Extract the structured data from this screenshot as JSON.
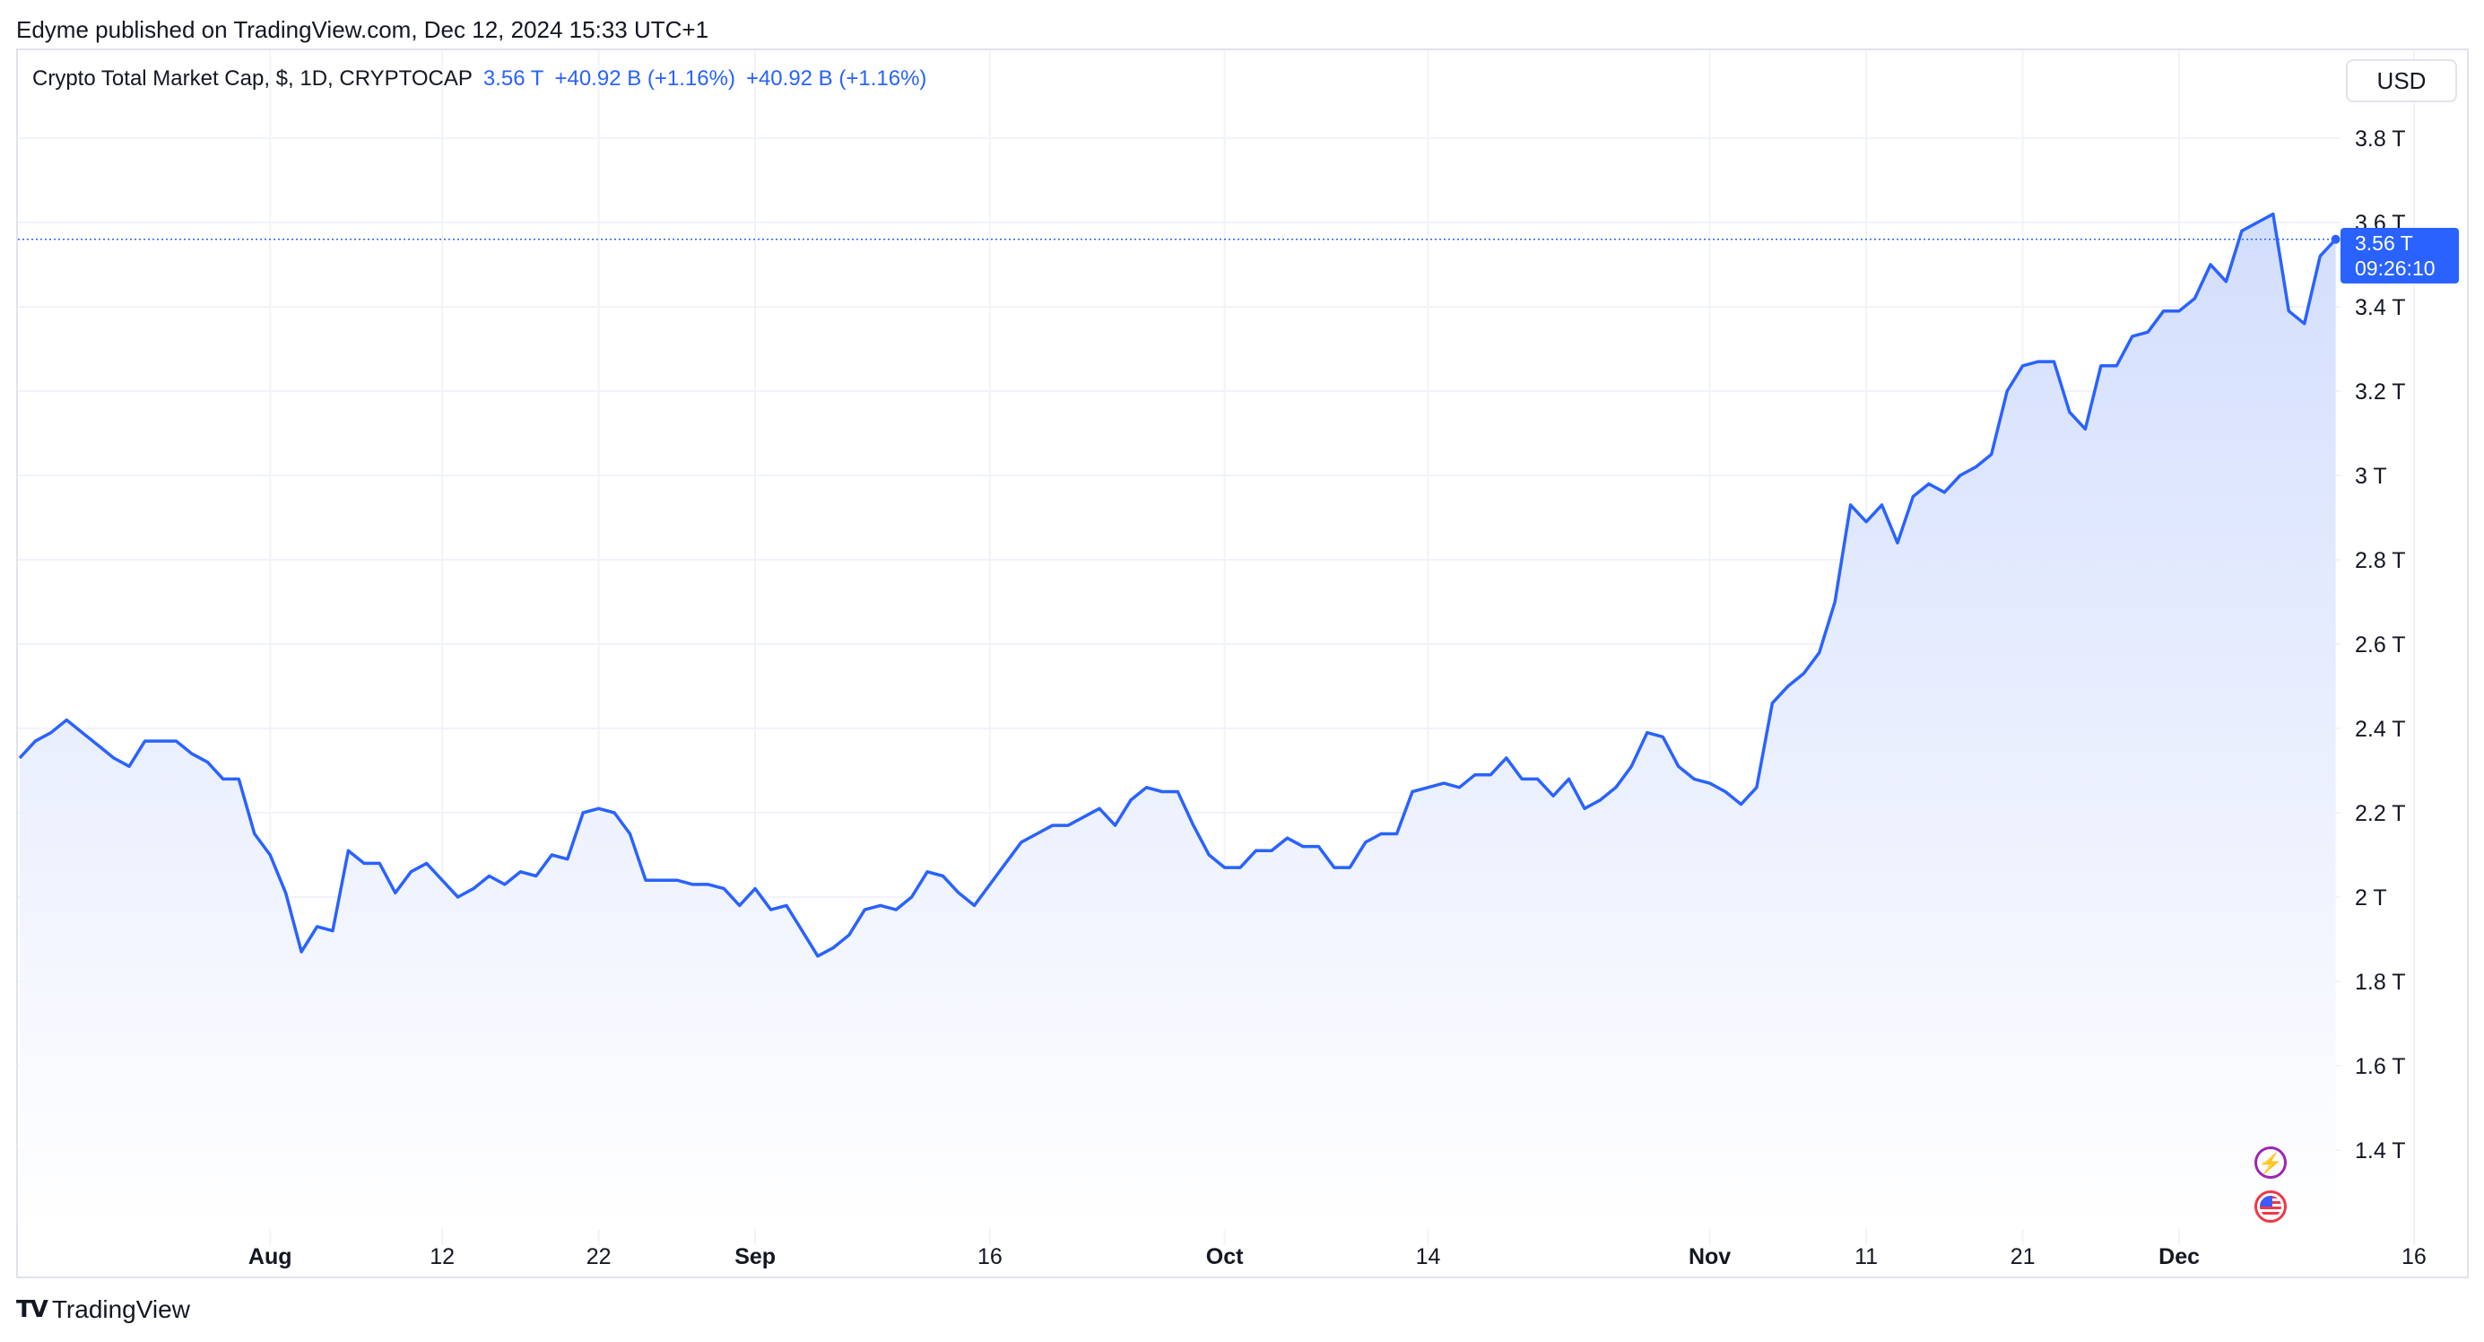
{
  "publisher": "Edyme published on TradingView.com, Dec 12, 2024 15:33 UTC+1",
  "legend": {
    "symbol": "Crypto Total Market Cap, $, 1D, CRYPTOCAP",
    "last": "3.56 T",
    "change1": "+40.92 B (+1.16%)",
    "change2": "+40.92 B (+1.16%)"
  },
  "currency_button": "USD",
  "price_tag": {
    "value": "3.56 T",
    "countdown": "09:26:10"
  },
  "footer_brand": "TradingView",
  "icons": [
    "tradingview-logo-icon",
    "bolt-icon",
    "us-flag-icon"
  ],
  "colors": {
    "line": "#2962ff",
    "area_top": "#d3defd",
    "area_bottom": "#ffffff",
    "grid": "#f0f3fa"
  },
  "chart_data": {
    "type": "area",
    "title": "Crypto Total Market Cap, $, 1D, CRYPTOCAP",
    "xlabel": "",
    "ylabel": "",
    "ylim": [
      1.2,
      3.9
    ],
    "y_ticks": [
      {
        "value": 1.4,
        "label": "1.4 T"
      },
      {
        "value": 1.6,
        "label": "1.6 T"
      },
      {
        "value": 1.8,
        "label": "1.8 T"
      },
      {
        "value": 2.0,
        "label": "2 T"
      },
      {
        "value": 2.2,
        "label": "2.2 T"
      },
      {
        "value": 2.4,
        "label": "2.4 T"
      },
      {
        "value": 2.6,
        "label": "2.6 T"
      },
      {
        "value": 2.8,
        "label": "2.8 T"
      },
      {
        "value": 3.0,
        "label": "3 T"
      },
      {
        "value": 3.2,
        "label": "3.2 T"
      },
      {
        "value": 3.4,
        "label": "3.4 T"
      },
      {
        "value": 3.6,
        "label": "3.6 T"
      },
      {
        "value": 3.8,
        "label": "3.8 T"
      }
    ],
    "x_ticks": [
      {
        "date": "2024-08-01",
        "label": "Aug",
        "bold": true
      },
      {
        "date": "2024-08-12",
        "label": "12",
        "bold": false
      },
      {
        "date": "2024-08-22",
        "label": "22",
        "bold": false
      },
      {
        "date": "2024-09-01",
        "label": "Sep",
        "bold": true
      },
      {
        "date": "2024-09-16",
        "label": "16",
        "bold": false
      },
      {
        "date": "2024-10-01",
        "label": "Oct",
        "bold": true
      },
      {
        "date": "2024-10-14",
        "label": "14",
        "bold": false
      },
      {
        "date": "2024-11-01",
        "label": "Nov",
        "bold": true
      },
      {
        "date": "2024-11-11",
        "label": "11",
        "bold": false
      },
      {
        "date": "2024-11-21",
        "label": "21",
        "bold": false
      },
      {
        "date": "2024-12-01",
        "label": "Dec",
        "bold": true
      },
      {
        "date": "2024-12-16",
        "label": "16",
        "bold": false
      }
    ],
    "xlim": [
      "2024-07-16",
      "2024-12-16"
    ],
    "last_value": 3.56,
    "grid": true,
    "series": [
      {
        "name": "Crypto Total Market Cap",
        "start_date": "2024-07-16",
        "values": [
          2.33,
          2.37,
          2.39,
          2.42,
          2.39,
          2.36,
          2.33,
          2.31,
          2.37,
          2.37,
          2.37,
          2.34,
          2.32,
          2.28,
          2.28,
          2.15,
          2.1,
          2.01,
          1.87,
          1.93,
          1.92,
          2.11,
          2.08,
          2.08,
          2.01,
          2.06,
          2.08,
          2.04,
          2.0,
          2.02,
          2.05,
          2.03,
          2.06,
          2.05,
          2.1,
          2.09,
          2.2,
          2.21,
          2.2,
          2.15,
          2.04,
          2.04,
          2.04,
          2.03,
          2.03,
          2.02,
          1.98,
          2.02,
          1.97,
          1.98,
          1.92,
          1.86,
          1.88,
          1.91,
          1.97,
          1.98,
          1.97,
          2.0,
          2.06,
          2.05,
          2.01,
          1.98,
          2.03,
          2.08,
          2.13,
          2.15,
          2.17,
          2.17,
          2.19,
          2.21,
          2.17,
          2.23,
          2.26,
          2.25,
          2.25,
          2.17,
          2.1,
          2.07,
          2.07,
          2.11,
          2.11,
          2.14,
          2.12,
          2.12,
          2.07,
          2.07,
          2.13,
          2.15,
          2.15,
          2.25,
          2.26,
          2.27,
          2.26,
          2.29,
          2.29,
          2.33,
          2.28,
          2.28,
          2.24,
          2.28,
          2.21,
          2.23,
          2.26,
          2.31,
          2.39,
          2.38,
          2.31,
          2.28,
          2.27,
          2.25,
          2.22,
          2.26,
          2.46,
          2.5,
          2.53,
          2.58,
          2.7,
          2.93,
          2.89,
          2.93,
          2.84,
          2.95,
          2.98,
          2.96,
          3.0,
          3.02,
          3.05,
          3.2,
          3.26,
          3.27,
          3.27,
          3.15,
          3.11,
          3.26,
          3.26,
          3.33,
          3.34,
          3.39,
          3.39,
          3.42,
          3.5,
          3.46,
          3.58,
          3.6,
          3.62,
          3.39,
          3.36,
          3.52,
          3.56
        ]
      }
    ]
  }
}
